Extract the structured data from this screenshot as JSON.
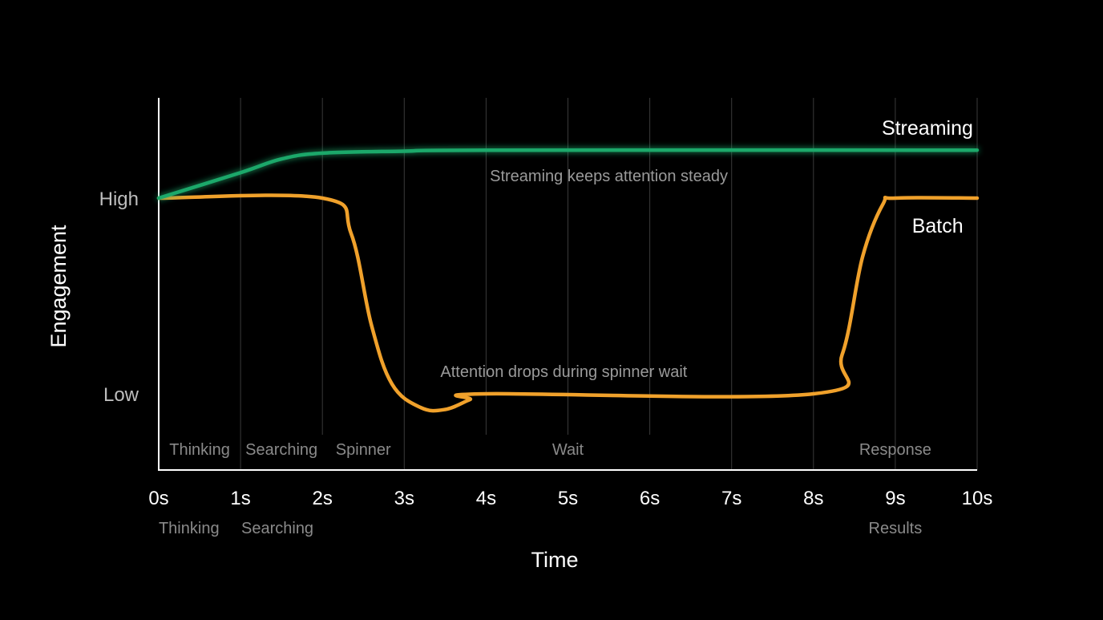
{
  "chart_data": {
    "type": "line",
    "title": "",
    "xlabel": "Time",
    "ylabel": "Engagement",
    "x_ticks": [
      0,
      1,
      2,
      3,
      4,
      5,
      6,
      7,
      8,
      9,
      10
    ],
    "x_tick_labels": [
      "0s",
      "1s",
      "2s",
      "3s",
      "4s",
      "5s",
      "6s",
      "7s",
      "8s",
      "9s",
      "10s"
    ],
    "xlim": [
      0,
      10
    ],
    "ylim": [
      -0.35,
      1.3
    ],
    "y_tick_labels": [
      {
        "value": 1,
        "label": "High"
      },
      {
        "value": 0,
        "label": "Low"
      }
    ],
    "grid": true,
    "series": [
      {
        "name": "Streaming",
        "color": "#1aa86a",
        "glow": true,
        "points": [
          [
            0,
            1.0
          ],
          [
            1,
            1.13
          ],
          [
            1.5,
            1.2
          ],
          [
            2,
            1.23
          ],
          [
            3,
            1.24
          ],
          [
            4,
            1.245
          ],
          [
            10,
            1.245
          ]
        ]
      },
      {
        "name": "Batch",
        "color": "#f0a12b",
        "glow": false,
        "points": [
          [
            0,
            1.0
          ],
          [
            2,
            1.0
          ],
          [
            2.35,
            0.82
          ],
          [
            2.6,
            0.35
          ],
          [
            2.85,
            0.05
          ],
          [
            3.2,
            -0.07
          ],
          [
            3.5,
            -0.08
          ],
          [
            3.8,
            -0.03
          ],
          [
            4.0,
            0.0
          ],
          [
            8,
            0.0
          ],
          [
            8.35,
            0.2
          ],
          [
            8.6,
            0.7
          ],
          [
            8.85,
            0.97
          ],
          [
            9.0,
            1.0
          ],
          [
            10,
            1.0
          ]
        ]
      }
    ],
    "phase_labels": [
      {
        "text": "Thinking",
        "x": 0.5
      },
      {
        "text": "Searching",
        "x": 1.5
      },
      {
        "text": "Spinner",
        "x": 2.5
      },
      {
        "text": "Wait",
        "x": 5.0
      },
      {
        "text": "Response",
        "x": 9.0
      }
    ],
    "sub_labels": [
      {
        "text": "Thinking",
        "x": 0.37
      },
      {
        "text": "Searching",
        "x": 1.45
      },
      {
        "text": "Results",
        "x": 9.0
      }
    ],
    "annotations": [
      {
        "text": "Streaming keeps attention steady",
        "x": 5.5,
        "y": 1.115
      },
      {
        "text": "Attention drops during spinner wait",
        "x": 4.95,
        "y": 0.115
      }
    ],
    "series_labels": [
      {
        "text": "Streaming",
        "x": 9.95,
        "y": 1.36
      },
      {
        "text": "Batch",
        "x": 9.83,
        "y": 0.86
      }
    ]
  }
}
